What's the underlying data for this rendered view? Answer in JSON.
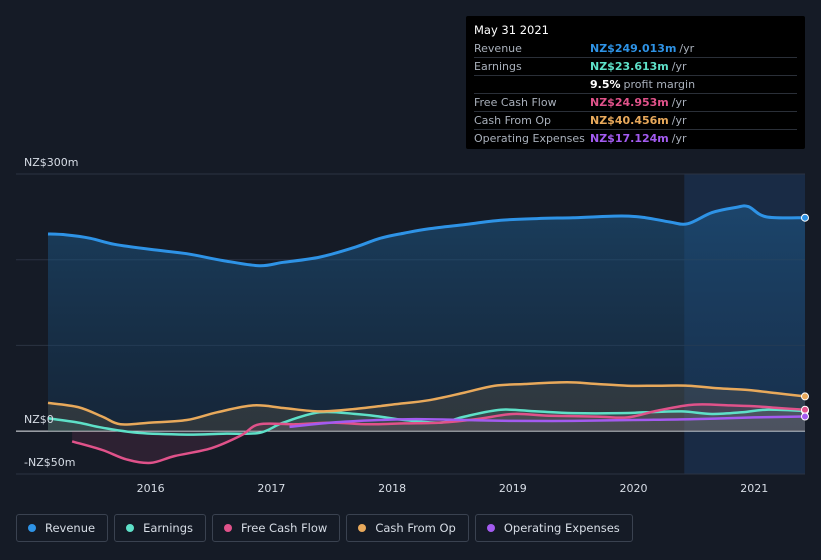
{
  "tooltip": {
    "date": "May 31 2021",
    "rows": [
      {
        "label": "Revenue",
        "value": "NZ$249.013m",
        "unit": "/yr",
        "color": "#2e93e6"
      },
      {
        "label": "Earnings",
        "value": "NZ$23.613m",
        "unit": "/yr",
        "color": "#5ee0c8"
      },
      {
        "label": "",
        "value": "9.5%",
        "unit": "profit margin",
        "color": "#ffffff"
      },
      {
        "label": "Free Cash Flow",
        "value": "NZ$24.953m",
        "unit": "/yr",
        "color": "#e0528a"
      },
      {
        "label": "Cash From Op",
        "value": "NZ$40.456m",
        "unit": "/yr",
        "color": "#e8a95b"
      },
      {
        "label": "Operating Expenses",
        "value": "NZ$17.124m",
        "unit": "/yr",
        "color": "#a35bf0"
      }
    ]
  },
  "legend": [
    {
      "label": "Revenue",
      "color": "#2e93e6"
    },
    {
      "label": "Earnings",
      "color": "#5ee0c8"
    },
    {
      "label": "Free Cash Flow",
      "color": "#e0528a"
    },
    {
      "label": "Cash From Op",
      "color": "#e8a95b"
    },
    {
      "label": "Operating Expenses",
      "color": "#a35bf0"
    }
  ],
  "chart_data": {
    "type": "line",
    "y_label_top": "NZ$300m",
    "y_label_zero": "NZ$0",
    "y_label_bottom": "-NZ$50m",
    "ylim": [
      -50,
      300
    ],
    "xlim": [
      2015.1,
      2021.42
    ],
    "x_ticks": [
      {
        "value": 2016,
        "label": "2016"
      },
      {
        "value": 2017,
        "label": "2017"
      },
      {
        "value": 2018,
        "label": "2018"
      },
      {
        "value": 2019,
        "label": "2019"
      },
      {
        "value": 2020,
        "label": "2020"
      },
      {
        "value": 2021,
        "label": "2021"
      }
    ],
    "highlight_from": 2020.42,
    "series": [
      {
        "name": "Revenue",
        "color": "#2e93e6",
        "fill": true,
        "x": [
          2015.15,
          2015.3,
          2015.5,
          2015.7,
          2016.0,
          2016.3,
          2016.6,
          2016.9,
          2017.1,
          2017.4,
          2017.7,
          2017.9,
          2018.1,
          2018.3,
          2018.6,
          2018.9,
          2019.2,
          2019.5,
          2019.9,
          2020.1,
          2020.3,
          2020.45,
          2020.65,
          2020.85,
          2020.95,
          2021.1,
          2021.42
        ],
        "y": [
          230,
          229,
          225,
          218,
          212,
          207,
          199,
          193,
          197,
          203,
          215,
          225,
          231,
          236,
          241,
          246,
          248,
          249,
          251,
          249,
          244,
          242,
          255,
          261,
          262,
          250,
          249
        ]
      },
      {
        "name": "Earnings",
        "color": "#5ee0c8",
        "fill": true,
        "x": [
          2015.15,
          2015.4,
          2015.6,
          2015.9,
          2016.3,
          2016.6,
          2016.9,
          2017.1,
          2017.4,
          2017.7,
          2017.9,
          2018.1,
          2018.4,
          2018.6,
          2018.9,
          2019.2,
          2019.5,
          2019.9,
          2020.1,
          2020.4,
          2020.65,
          2020.9,
          2021.1,
          2021.42
        ],
        "y": [
          15,
          10,
          4,
          -2,
          -4,
          -3,
          -2,
          10,
          22,
          20,
          17,
          13,
          10,
          17,
          25,
          23,
          21,
          21,
          22,
          23,
          20,
          22,
          25,
          23.6
        ]
      },
      {
        "name": "Free Cash Flow",
        "color": "#e0528a",
        "fill": true,
        "x": [
          2015.35,
          2015.6,
          2015.8,
          2016.0,
          2016.2,
          2016.5,
          2016.75,
          2016.9,
          2017.2,
          2017.5,
          2017.8,
          2018.1,
          2018.4,
          2018.7,
          2019.0,
          2019.3,
          2019.7,
          2019.95,
          2020.2,
          2020.5,
          2020.8,
          2021.0,
          2021.2,
          2021.42
        ],
        "y": [
          -12,
          -22,
          -33,
          -37,
          -29,
          -20,
          -5,
          8,
          8,
          10,
          8,
          9,
          10,
          14,
          20,
          18,
          17,
          16,
          24,
          31,
          30,
          29,
          27,
          25
        ]
      },
      {
        "name": "Cash From Op",
        "color": "#e8a95b",
        "fill": true,
        "x": [
          2015.15,
          2015.4,
          2015.6,
          2015.75,
          2016.0,
          2016.3,
          2016.55,
          2016.85,
          2017.1,
          2017.4,
          2017.7,
          2018.0,
          2018.3,
          2018.6,
          2018.85,
          2019.1,
          2019.45,
          2019.7,
          2019.95,
          2020.2,
          2020.45,
          2020.7,
          2020.95,
          2021.2,
          2021.42
        ],
        "y": [
          33,
          28,
          17,
          8,
          10,
          13,
          22,
          30,
          27,
          23,
          26,
          31,
          36,
          45,
          53,
          55,
          57,
          55,
          53,
          53,
          53,
          50,
          48,
          44,
          40.5
        ]
      },
      {
        "name": "Operating Expenses",
        "color": "#a35bf0",
        "fill": false,
        "x": [
          2017.15,
          2017.5,
          2017.9,
          2018.2,
          2018.6,
          2019.0,
          2019.5,
          2020.0,
          2020.5,
          2021.0,
          2021.42
        ],
        "y": [
          5,
          10,
          13,
          14,
          13,
          12,
          12,
          13,
          14,
          16,
          17.1
        ]
      }
    ]
  }
}
